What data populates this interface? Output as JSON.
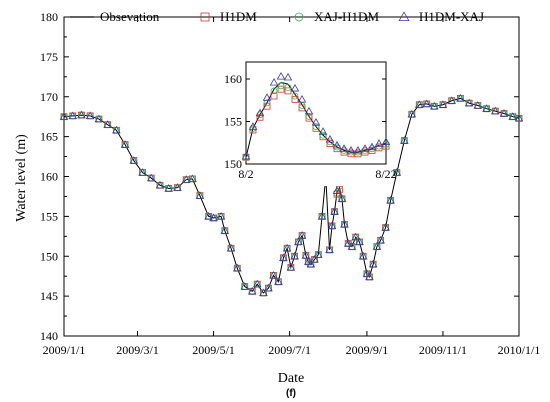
{
  "chart_data": {
    "type": "scatter",
    "title": "",
    "panel_label": "(f)",
    "xlabel": "Date",
    "ylabel": "Water level (m)",
    "x_scale": "date",
    "xlim": [
      "2009-01-01",
      "2010-01-01"
    ],
    "ylim": [
      140,
      180
    ],
    "x_tick_labels": [
      "2009/1/1",
      "2009/3/1",
      "2009/5/1",
      "2009/7/1",
      "2009/9/1",
      "2009/11/1",
      "2010/1/1"
    ],
    "x_ticks": [
      "2009-01-01",
      "2009-03-01",
      "2009-05-01",
      "2009-07-01",
      "2009-09-01",
      "2009-11-01",
      "2010-01-01"
    ],
    "y_tick_labels": [
      "140",
      "145",
      "150",
      "155",
      "160",
      "165",
      "170",
      "175",
      "180"
    ],
    "y_ticks": [
      140,
      145,
      150,
      155,
      160,
      165,
      170,
      175,
      180
    ],
    "legend": {
      "placement": "top",
      "entries": [
        "Obsevation",
        "H1DM",
        "XAJ-H1DM",
        "H1DM-XAJ"
      ]
    },
    "series_styles": [
      {
        "name": "Obsevation",
        "marker": "line",
        "color": "#000000"
      },
      {
        "name": "H1DM",
        "marker": "square",
        "color": "#d9342b"
      },
      {
        "name": "XAJ-H1DM",
        "marker": "circle",
        "color": "#38b24a"
      },
      {
        "name": "H1DM-XAJ",
        "marker": "triangle",
        "color": "#3a3a9e"
      }
    ],
    "x": [
      "2009-01-01",
      "2009-01-08",
      "2009-01-15",
      "2009-01-22",
      "2009-01-29",
      "2009-02-05",
      "2009-02-12",
      "2009-02-19",
      "2009-02-26",
      "2009-03-05",
      "2009-03-12",
      "2009-03-19",
      "2009-03-26",
      "2009-04-02",
      "2009-04-09",
      "2009-04-14",
      "2009-04-20",
      "2009-04-27",
      "2009-05-01",
      "2009-05-07",
      "2009-05-10",
      "2009-05-15",
      "2009-05-20",
      "2009-05-26",
      "2009-06-01",
      "2009-06-05",
      "2009-06-10",
      "2009-06-14",
      "2009-06-18",
      "2009-06-22",
      "2009-06-26",
      "2009-06-29",
      "2009-07-02",
      "2009-07-05",
      "2009-07-08",
      "2009-07-11",
      "2009-07-14",
      "2009-07-16",
      "2009-07-18",
      "2009-07-21",
      "2009-07-24",
      "2009-07-27",
      "2009-07-30",
      "2009-08-02",
      "2009-08-04",
      "2009-08-06",
      "2009-08-08",
      "2009-08-10",
      "2009-08-12",
      "2009-08-14",
      "2009-08-17",
      "2009-08-20",
      "2009-08-23",
      "2009-08-26",
      "2009-08-29",
      "2009-09-01",
      "2009-09-03",
      "2009-09-06",
      "2009-09-09",
      "2009-09-12",
      "2009-09-16",
      "2009-09-20",
      "2009-09-25",
      "2009-10-01",
      "2009-10-07",
      "2009-10-13",
      "2009-10-19",
      "2009-10-25",
      "2009-11-01",
      "2009-11-08",
      "2009-11-15",
      "2009-11-22",
      "2009-11-29",
      "2009-12-06",
      "2009-12-13",
      "2009-12-20",
      "2009-12-27",
      "2010-01-01"
    ],
    "series": [
      {
        "name": "Obsevation",
        "values": [
          167.5,
          167.6,
          167.7,
          167.6,
          167.2,
          166.5,
          165.8,
          164.0,
          162.0,
          160.5,
          159.8,
          158.9,
          158.5,
          158.6,
          159.6,
          159.7,
          157.6,
          155.0,
          154.8,
          155.0,
          153.2,
          151.0,
          148.5,
          146.2,
          145.6,
          146.5,
          145.4,
          146.0,
          147.6,
          146.8,
          149.8,
          151.0,
          148.6,
          150.0,
          151.8,
          152.6,
          150.1,
          149.3,
          149.0,
          149.6,
          150.2,
          155.0,
          160.0,
          150.8,
          153.8,
          155.6,
          158.0,
          158.6,
          157.2,
          154.0,
          151.6,
          151.2,
          152.4,
          151.8,
          150.0,
          147.8,
          147.4,
          149.0,
          151.2,
          152.0,
          153.6,
          157.0,
          160.5,
          164.5,
          167.8,
          169.0,
          169.1,
          168.8,
          169.0,
          169.5,
          169.8,
          169.2,
          168.9,
          168.5,
          168.2,
          167.9,
          167.5,
          167.3
        ]
      },
      {
        "name": "H1DM",
        "values": [
          167.5,
          167.6,
          167.7,
          167.6,
          167.2,
          166.5,
          165.8,
          164.0,
          162.0,
          160.5,
          159.8,
          158.9,
          158.5,
          158.6,
          159.6,
          159.7,
          157.6,
          155.0,
          154.8,
          155.0,
          153.2,
          151.0,
          148.5,
          146.2,
          145.6,
          146.5,
          145.4,
          146.0,
          147.6,
          146.8,
          149.8,
          151.0,
          148.6,
          150.0,
          151.8,
          152.6,
          150.1,
          149.3,
          149.0,
          149.6,
          150.2,
          155.0,
          159.8,
          150.8,
          153.8,
          155.6,
          157.8,
          158.4,
          157.2,
          154.0,
          151.6,
          151.2,
          152.4,
          151.8,
          150.0,
          147.8,
          147.4,
          149.0,
          151.2,
          152.0,
          153.6,
          157.0,
          160.5,
          164.5,
          167.8,
          169.0,
          169.1,
          168.8,
          169.0,
          169.5,
          169.8,
          169.2,
          168.9,
          168.5,
          168.2,
          167.9,
          167.5,
          167.3
        ]
      },
      {
        "name": "XAJ-H1DM",
        "values": [
          167.5,
          167.6,
          167.7,
          167.6,
          167.2,
          166.5,
          165.8,
          164.0,
          162.0,
          160.5,
          159.8,
          158.9,
          158.5,
          158.6,
          159.6,
          159.7,
          157.6,
          155.0,
          154.8,
          155.0,
          153.2,
          151.0,
          148.5,
          146.2,
          145.6,
          146.5,
          145.4,
          146.0,
          147.6,
          146.8,
          149.8,
          151.0,
          148.6,
          150.0,
          151.8,
          152.6,
          150.1,
          149.3,
          149.0,
          149.6,
          150.2,
          155.0,
          159.9,
          150.8,
          153.8,
          155.6,
          157.9,
          158.8,
          157.2,
          154.0,
          151.6,
          151.2,
          152.4,
          151.8,
          150.0,
          147.8,
          147.4,
          149.0,
          151.2,
          152.0,
          153.6,
          157.0,
          160.5,
          164.5,
          167.8,
          169.0,
          169.1,
          168.8,
          169.0,
          169.5,
          169.8,
          169.2,
          168.9,
          168.5,
          168.2,
          167.9,
          167.5,
          167.3
        ]
      },
      {
        "name": "H1DM-XAJ",
        "values": [
          167.5,
          167.6,
          167.7,
          167.6,
          167.2,
          166.5,
          165.8,
          164.0,
          162.0,
          160.5,
          159.8,
          158.9,
          158.5,
          158.6,
          159.6,
          159.7,
          157.6,
          155.0,
          154.8,
          155.0,
          153.2,
          151.0,
          148.5,
          146.2,
          145.6,
          146.5,
          145.4,
          146.0,
          147.6,
          146.8,
          149.8,
          151.0,
          148.6,
          150.0,
          151.8,
          152.6,
          150.1,
          149.3,
          149.0,
          149.6,
          150.2,
          155.0,
          160.2,
          150.8,
          153.8,
          155.6,
          158.2,
          159.8,
          157.2,
          154.0,
          151.6,
          151.2,
          152.4,
          151.8,
          150.0,
          147.8,
          147.4,
          149.0,
          151.2,
          152.0,
          153.6,
          157.0,
          160.5,
          164.5,
          167.8,
          169.0,
          169.1,
          168.8,
          169.0,
          169.5,
          169.8,
          169.2,
          168.9,
          168.5,
          168.2,
          167.9,
          167.5,
          167.3
        ]
      }
    ],
    "inset": {
      "type": "scatter",
      "xlim": [
        "2009-08-02",
        "2009-08-22"
      ],
      "ylim": [
        150,
        162
      ],
      "x_tick_labels": [
        "8/2",
        "8/22"
      ],
      "y_tick_labels": [
        "150",
        "155",
        "160"
      ],
      "y_ticks": [
        150,
        155,
        160
      ],
      "x": [
        "2009-08-02",
        "2009-08-03",
        "2009-08-04",
        "2009-08-05",
        "2009-08-06",
        "2009-08-07",
        "2009-08-08",
        "2009-08-09",
        "2009-08-10",
        "2009-08-11",
        "2009-08-12",
        "2009-08-13",
        "2009-08-14",
        "2009-08-15",
        "2009-08-16",
        "2009-08-17",
        "2009-08-18",
        "2009-08-19",
        "2009-08-20",
        "2009-08-21",
        "2009-08-22"
      ],
      "series": [
        {
          "name": "Obsevation",
          "values": [
            150.8,
            154.2,
            155.8,
            157.2,
            158.8,
            159.6,
            159.4,
            158.2,
            157.0,
            155.6,
            154.4,
            153.4,
            152.6,
            152.0,
            151.6,
            151.4,
            151.4,
            151.6,
            151.8,
            152.2,
            152.4
          ]
        },
        {
          "name": "H1DM",
          "values": [
            150.8,
            154.0,
            155.5,
            156.8,
            158.0,
            158.8,
            158.6,
            157.6,
            156.6,
            155.4,
            154.2,
            153.2,
            152.4,
            151.8,
            151.4,
            151.2,
            151.2,
            151.4,
            151.6,
            151.9,
            152.1
          ]
        },
        {
          "name": "XAJ-H1DM",
          "values": [
            150.8,
            154.2,
            155.8,
            157.2,
            158.6,
            159.2,
            159.0,
            158.0,
            156.9,
            155.6,
            154.4,
            153.4,
            152.6,
            152.0,
            151.6,
            151.4,
            151.4,
            151.6,
            151.8,
            152.1,
            152.3
          ]
        },
        {
          "name": "H1DM-XAJ",
          "values": [
            150.9,
            154.4,
            156.0,
            157.8,
            159.6,
            160.3,
            160.2,
            158.9,
            157.6,
            156.2,
            154.9,
            153.8,
            152.9,
            152.2,
            151.8,
            151.6,
            151.6,
            151.8,
            152.0,
            152.4,
            152.6
          ]
        }
      ]
    }
  }
}
